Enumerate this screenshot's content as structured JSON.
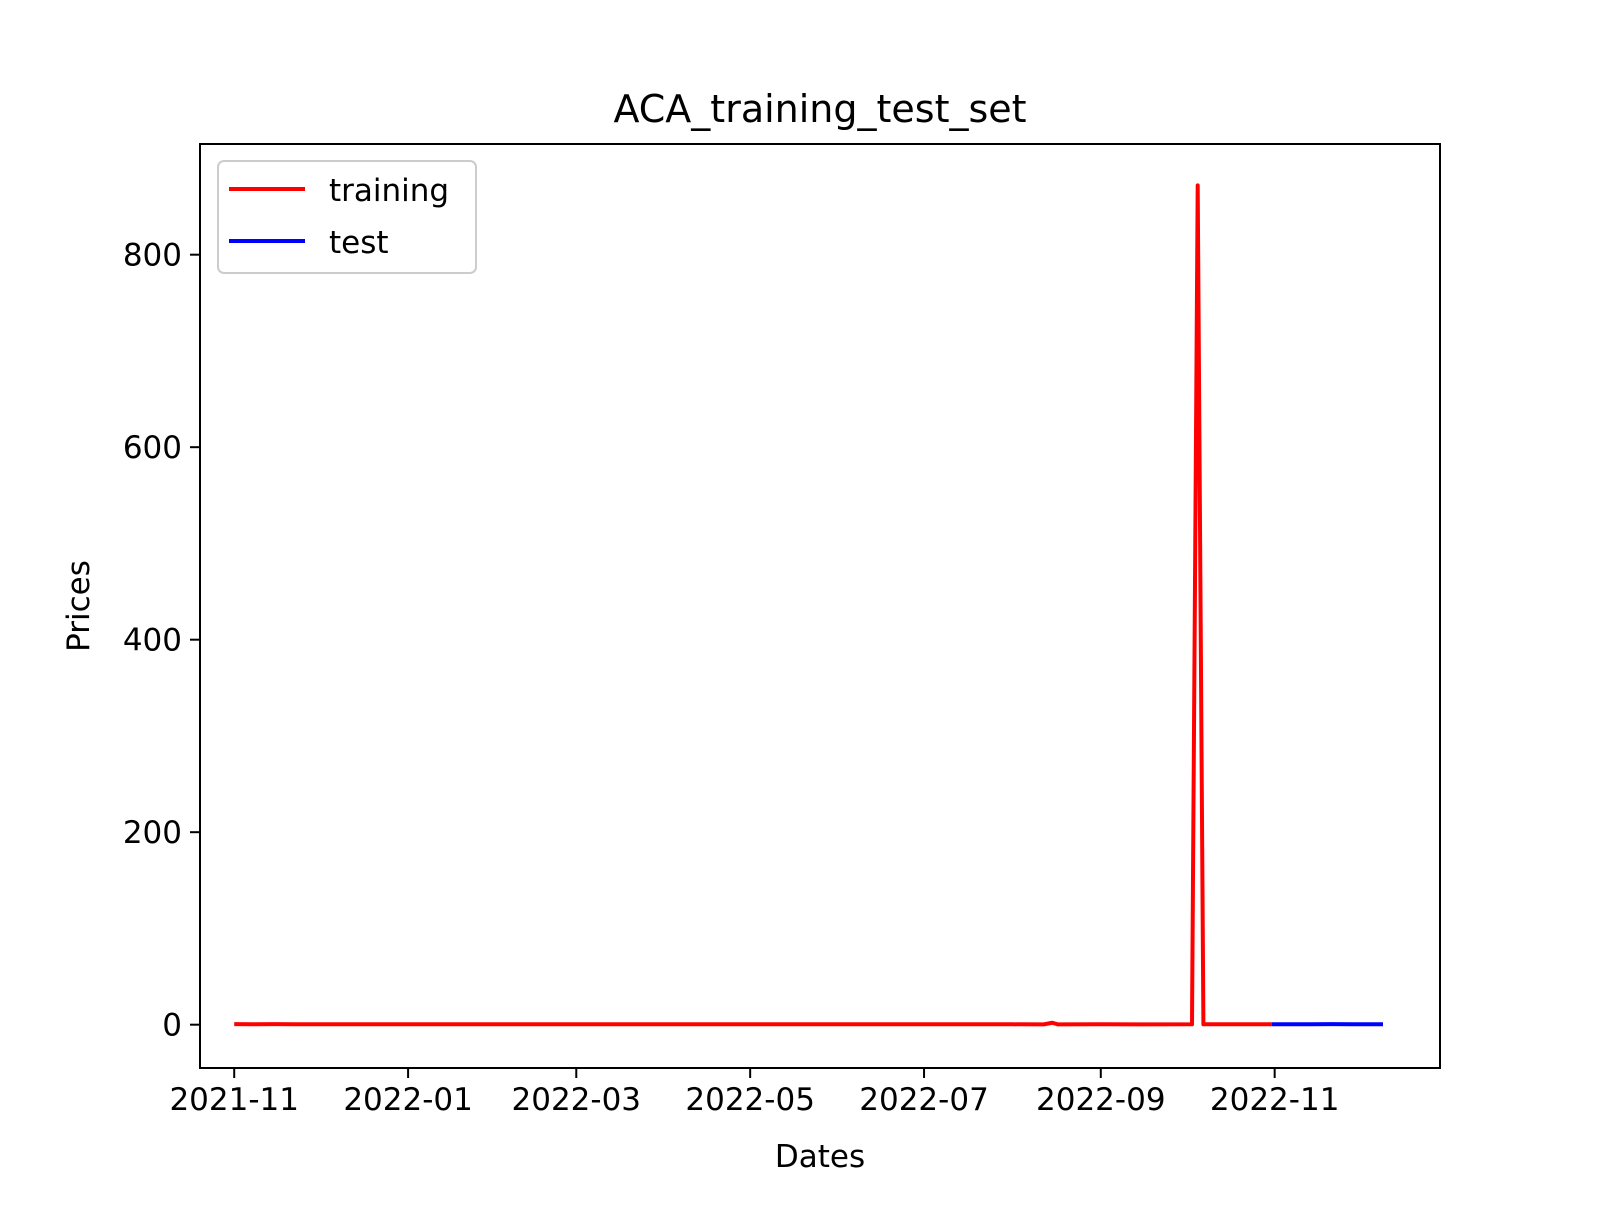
{
  "chart_data": {
    "type": "line",
    "title": "ACA_training_test_set",
    "xlabel": "Dates",
    "ylabel": "Prices",
    "xlim": [
      "2021-10-20",
      "2022-12-29"
    ],
    "ylim": [
      -45,
      915
    ],
    "x_ticks": [
      "2021-11",
      "2022-01",
      "2022-03",
      "2022-05",
      "2022-07",
      "2022-09",
      "2022-11"
    ],
    "y_ticks": [
      0,
      200,
      400,
      600,
      800
    ],
    "grid": false,
    "legend": {
      "placement": "upper-left",
      "entries": [
        "training",
        "test"
      ]
    },
    "colors": {
      "training": "#ff0000",
      "test": "#0000ff"
    },
    "series": [
      {
        "name": "training",
        "color": "#ff0000",
        "points": [
          [
            "2021-11-01",
            0.6
          ],
          [
            "2021-11-08",
            0.5
          ],
          [
            "2021-11-15",
            0.6
          ],
          [
            "2021-11-22",
            0.5
          ],
          [
            "2021-12-01",
            0.5
          ],
          [
            "2021-12-15",
            0.4
          ],
          [
            "2022-01-03",
            0.5
          ],
          [
            "2022-01-17",
            0.5
          ],
          [
            "2022-02-01",
            0.5
          ],
          [
            "2022-02-15",
            0.4
          ],
          [
            "2022-03-01",
            0.4
          ],
          [
            "2022-03-15",
            0.4
          ],
          [
            "2022-04-01",
            0.4
          ],
          [
            "2022-04-15",
            0.4
          ],
          [
            "2022-05-02",
            0.4
          ],
          [
            "2022-05-16",
            0.4
          ],
          [
            "2022-06-01",
            0.4
          ],
          [
            "2022-06-15",
            0.4
          ],
          [
            "2022-07-01",
            0.4
          ],
          [
            "2022-07-15",
            0.4
          ],
          [
            "2022-08-01",
            0.4
          ],
          [
            "2022-08-12",
            0.3
          ],
          [
            "2022-08-15",
            2.0
          ],
          [
            "2022-08-17",
            0.3
          ],
          [
            "2022-09-01",
            0.4
          ],
          [
            "2022-09-15",
            0.3
          ],
          [
            "2022-10-03",
            0.4
          ],
          [
            "2022-10-05",
            872
          ],
          [
            "2022-10-07",
            0.4
          ],
          [
            "2022-10-17",
            0.4
          ],
          [
            "2022-10-31",
            0.4
          ]
        ]
      },
      {
        "name": "test",
        "color": "#0000ff",
        "points": [
          [
            "2022-10-31",
            0.4
          ],
          [
            "2022-11-07",
            0.5
          ],
          [
            "2022-11-14",
            0.4
          ],
          [
            "2022-11-21",
            0.6
          ],
          [
            "2022-11-28",
            0.5
          ],
          [
            "2022-12-05",
            0.5
          ],
          [
            "2022-12-09",
            0.5
          ]
        ]
      }
    ]
  }
}
